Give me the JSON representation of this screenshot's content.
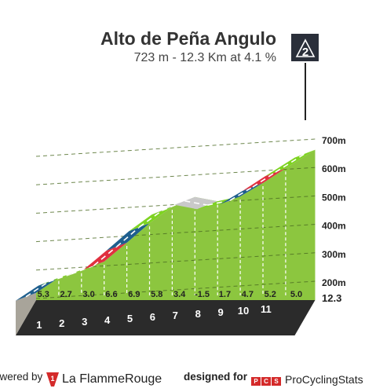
{
  "header": {
    "climb_name": "Alto de Peña Angulo",
    "climb_stats": "723 m - 12.3 Km at 4.1 %",
    "category": "2"
  },
  "footer": {
    "powered_by": "owered by",
    "flamme_rouge": "La FlammeRouge",
    "designed_for": "designed for",
    "pcs": "ProCyclingStats",
    "pcs_letters": [
      "P",
      "C",
      "S"
    ]
  },
  "colors": {
    "gradient_low": "#1e5f8e",
    "gradient_easy": "#7ed321",
    "gradient_mid": "#c9c9c9",
    "gradient_high": "#e0303f",
    "profile_fill": "#8cc63f",
    "base": "#2b2b2b"
  },
  "chart_data": {
    "type": "area",
    "title": "Alto de Peña Angulo",
    "subtitle": "723 m - 12.3 Km at 4.1 %",
    "x_unit": "km",
    "y_unit": "m",
    "xlim": [
      0,
      12.3
    ],
    "ylim": [
      200,
      723
    ],
    "y_ticks": [
      {
        "value": 200,
        "label": "200m"
      },
      {
        "value": 300,
        "label": "300m"
      },
      {
        "value": 400,
        "label": "400m"
      },
      {
        "value": 500,
        "label": "500m"
      },
      {
        "value": 600,
        "label": "600m"
      },
      {
        "value": 700,
        "label": "700m"
      }
    ],
    "distance_end_label": "12.3",
    "km_labels": [
      "1",
      "2",
      "3",
      "4",
      "5",
      "6",
      "7",
      "8",
      "9",
      "10",
      "11"
    ],
    "segments": [
      {
        "km": 1,
        "gradient": 5.3,
        "gradient_label": "5.3",
        "band": "low"
      },
      {
        "km": 2,
        "gradient": 2.7,
        "gradient_label": "2.7",
        "band": "easy"
      },
      {
        "km": 3,
        "gradient": 3.0,
        "gradient_label": "3.0",
        "band": "easy"
      },
      {
        "km": 4,
        "gradient": 6.6,
        "gradient_label": "6.6",
        "band": "high"
      },
      {
        "km": 5,
        "gradient": 6.9,
        "gradient_label": "6.9",
        "band": "low"
      },
      {
        "km": 6,
        "gradient": 5.8,
        "gradient_label": "5.8",
        "band": "easy"
      },
      {
        "km": 7,
        "gradient": 3.4,
        "gradient_label": "3.4",
        "band": "mid"
      },
      {
        "km": 8,
        "gradient": -1.5,
        "gradient_label": "-1.5",
        "band": "mid"
      },
      {
        "km": 9,
        "gradient": 1.7,
        "gradient_label": "1.7",
        "band": "easy"
      },
      {
        "km": 10,
        "gradient": 4.7,
        "gradient_label": "4.7",
        "band": "low"
      },
      {
        "km": 11,
        "gradient": 5.2,
        "gradient_label": "5.2",
        "band": "high"
      },
      {
        "km": 12.3,
        "gradient": 5.0,
        "gradient_label": "5.0",
        "band": "easy"
      }
    ]
  }
}
